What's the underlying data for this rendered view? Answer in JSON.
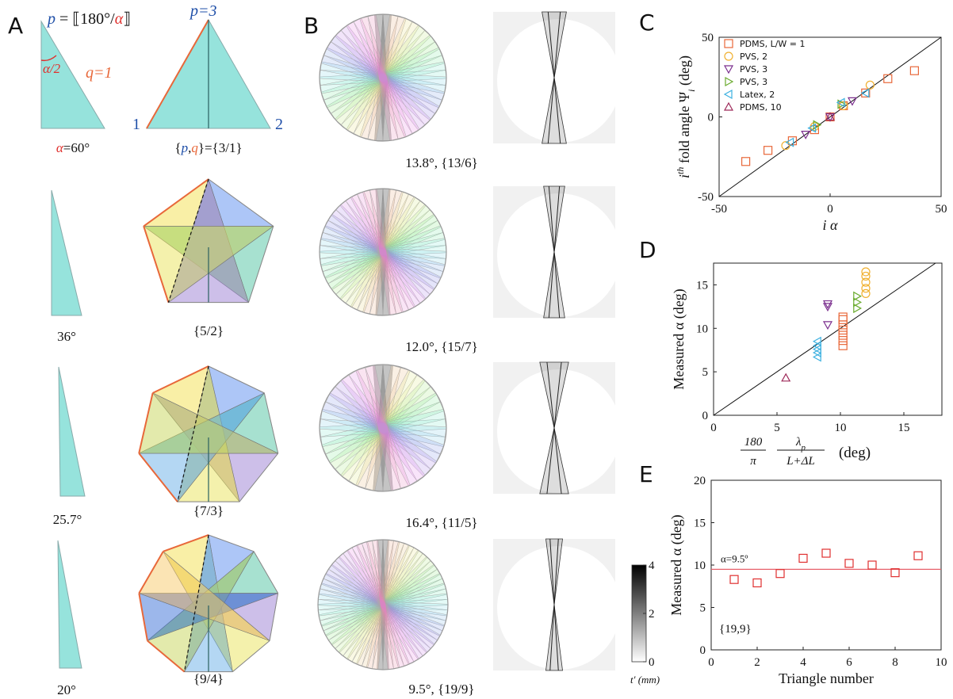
{
  "panel_a": {
    "letter": "A",
    "formula": [
      "p",
      " = ⟦180°/",
      "α",
      "⟧"
    ],
    "half_angle": "α/2",
    "p_label": "p=3",
    "q_label": "q=1",
    "vertex_1": "1",
    "vertex_2": "2",
    "alpha_label": [
      "α",
      "=60°"
    ],
    "pq_label": [
      "{",
      "p",
      ",",
      "q",
      "}={3/1}"
    ],
    "rows": [
      {
        "angle": "36°",
        "symbol": "{5/2}"
      },
      {
        "angle": "25.7°",
        "symbol": "{7/3}"
      },
      {
        "angle": "20°",
        "symbol": "{9/4}"
      }
    ]
  },
  "panel_b": {
    "letter": "B",
    "captions": [
      "13.8°, {13/6}",
      "12.0°, {15/7}",
      "16.4°, {11/5}",
      "9.5°, {19/9}"
    ],
    "colorbar": {
      "lim": [
        0,
        4
      ],
      "ticks": [
        0,
        2,
        4
      ],
      "label": "t′ (mm)"
    }
  },
  "chart_data": [
    {
      "type": "scatter",
      "letter": "C",
      "x_label": "i α",
      "y_label": [
        "i",
        "th",
        " fold angle Ψ",
        "i",
        " (deg)"
      ],
      "inset_label": "Ψ",
      "xlim": [
        -50,
        50
      ],
      "xticks": [
        -50,
        0,
        50
      ],
      "ylim": [
        -50,
        50
      ],
      "yticks": [
        -50,
        0,
        50
      ],
      "diagonal": true,
      "legend": "upper left",
      "series": [
        {
          "name": "PDMS, L/W = 1",
          "color": "#e8683a",
          "marker": "s",
          "x": [
            -38,
            -28,
            -17,
            -7,
            0,
            6,
            16,
            26,
            38
          ],
          "values": [
            -28,
            -21,
            -15,
            -8,
            0,
            7,
            15,
            24,
            29
          ]
        },
        {
          "name": "PVS, 2",
          "color": "#f0b030",
          "marker": "o",
          "x": [
            -20,
            -7,
            6,
            18
          ],
          "values": [
            -18,
            -6,
            7,
            20
          ]
        },
        {
          "name": "PVS, 3",
          "color": "#7b2f8e",
          "marker": "v",
          "x": [
            -11,
            0,
            10
          ],
          "values": [
            -11,
            0,
            10
          ]
        },
        {
          "name": "PVS, 3",
          "color": "#6aab2e",
          "marker": ">",
          "x": [
            -6,
            5
          ],
          "values": [
            -5,
            8
          ]
        },
        {
          "name": "Latex, 2",
          "color": "#3bb0e0",
          "marker": "<",
          "x": [
            -18,
            -8,
            5,
            16
          ],
          "values": [
            -16,
            -7,
            9,
            15
          ]
        },
        {
          "name": "PDMS, 10",
          "color": "#9e2a5a",
          "marker": "^",
          "x": [
            0
          ],
          "values": [
            0
          ]
        }
      ]
    },
    {
      "type": "scatter",
      "letter": "D",
      "x_label": [
        "180",
        "π",
        "λ",
        "p",
        "L+ΔL",
        "(deg)"
      ],
      "y_label": "Measured α (deg)",
      "xlim": [
        0,
        18
      ],
      "xticks": [
        0,
        5,
        10,
        15
      ],
      "ylim": [
        0,
        17.5
      ],
      "yticks": [
        0,
        5,
        10,
        15
      ],
      "diagonal": true,
      "series": [
        {
          "color": "#e8683a",
          "marker": "s",
          "x": [
            10.2,
            10.2,
            10.2,
            10.2,
            10.2,
            10.2,
            10.2
          ],
          "values": [
            8,
            8.6,
            9.2,
            9.8,
            10.4,
            11,
            11.3
          ]
        },
        {
          "color": "#f0b030",
          "marker": "o",
          "x": [
            12,
            12,
            12,
            12,
            12
          ],
          "values": [
            14,
            14.6,
            15.3,
            16,
            16.5
          ]
        },
        {
          "color": "#7b2f8e",
          "marker": "v",
          "x": [
            9,
            9,
            9
          ],
          "values": [
            10.4,
            12.5,
            12.8
          ]
        },
        {
          "color": "#6aab2e",
          "marker": ">",
          "x": [
            11.3,
            11.3,
            11.3
          ],
          "values": [
            12.3,
            13,
            13.7
          ]
        },
        {
          "color": "#3bb0e0",
          "marker": "<",
          "x": [
            8.2,
            8.2,
            8.2,
            8.2,
            8.2
          ],
          "values": [
            6.7,
            7.2,
            7.6,
            8,
            8.5
          ]
        },
        {
          "color": "#9e2a5a",
          "marker": "^",
          "x": [
            5.7
          ],
          "values": [
            4.3
          ]
        }
      ]
    },
    {
      "type": "scatter",
      "letter": "E",
      "x_label": "Triangle number",
      "y_label": "Measured α (deg)",
      "annotation": "{19,9}",
      "xlim": [
        0,
        10
      ],
      "xticks": [
        0,
        2,
        4,
        6,
        8,
        10
      ],
      "ylim": [
        0,
        20
      ],
      "yticks": [
        0,
        5,
        10,
        15,
        20
      ],
      "hline": {
        "value": 9.5,
        "label": "α=9.5º",
        "color": "#e8606a"
      },
      "series": [
        {
          "color": "#e03030",
          "marker": "s",
          "x": [
            1,
            2,
            3,
            4,
            5,
            6,
            7,
            8,
            9
          ],
          "values": [
            8.3,
            7.9,
            9.0,
            10.8,
            11.4,
            10.2,
            10.0,
            9.1,
            11.1
          ]
        }
      ]
    }
  ]
}
